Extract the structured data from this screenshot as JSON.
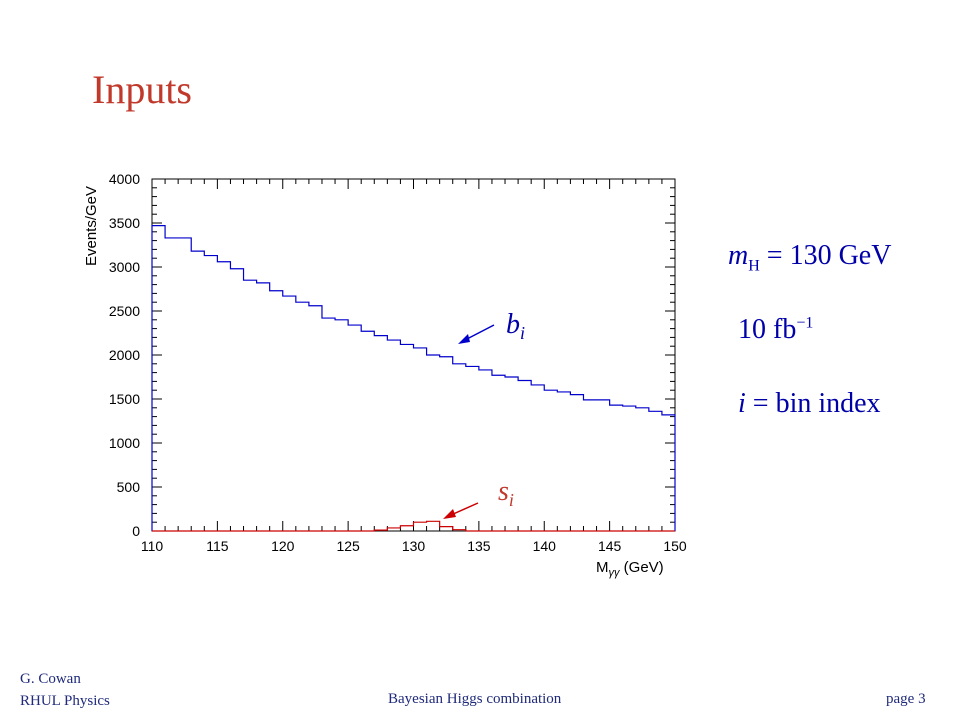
{
  "slide": {
    "title": "Inputs",
    "param_mass": {
      "sym": "m",
      "sub": "H",
      "rest": " = 130 GeV"
    },
    "lumi": {
      "main": "10 fb",
      "sup": "−1"
    },
    "bin_note": {
      "sym": "i",
      "rest": " = bin index"
    },
    "footer": {
      "author": "G. Cowan",
      "affil": "RHUL Physics",
      "talk": "Bayesian Higgs combination",
      "page": "page 3"
    },
    "colors": {
      "title": "#c0392b",
      "text": "#0000a8",
      "background_hist": "#0000cc",
      "signal_hist": "#cc0000"
    }
  },
  "chart_data": {
    "type": "histogram",
    "ylabel": "Events/GeV",
    "xlabel": {
      "main": "M",
      "sub": "γγ",
      "unit": " (GeV)"
    },
    "xlim": [
      110,
      150
    ],
    "ylim": [
      0,
      4000
    ],
    "x_ticks": [
      "110",
      "115",
      "120",
      "125",
      "130",
      "135",
      "140",
      "145",
      "150"
    ],
    "y_ticks": [
      "0",
      "500",
      "1000",
      "1500",
      "2000",
      "2500",
      "3000",
      "3500",
      "4000"
    ],
    "bin_edges": [
      110,
      111,
      112,
      113,
      114,
      115,
      116,
      117,
      118,
      119,
      120,
      121,
      122,
      123,
      124,
      125,
      126,
      127,
      128,
      129,
      130,
      131,
      132,
      133,
      134,
      135,
      136,
      137,
      138,
      139,
      140,
      141,
      142,
      143,
      144,
      145,
      146,
      147,
      148,
      149,
      150
    ],
    "series": [
      {
        "name": "b_i",
        "label": {
          "sym": "b",
          "sub": "i"
        },
        "values": [
          3470,
          3330,
          3330,
          3180,
          3130,
          3060,
          2980,
          2850,
          2820,
          2730,
          2670,
          2600,
          2560,
          2420,
          2400,
          2340,
          2270,
          2220,
          2170,
          2120,
          2080,
          2000,
          1980,
          1900,
          1870,
          1830,
          1770,
          1750,
          1710,
          1660,
          1600,
          1580,
          1550,
          1490,
          1490,
          1430,
          1420,
          1400,
          1360,
          1320
        ]
      },
      {
        "name": "s_i",
        "label": {
          "sym": "s",
          "sub": "i"
        },
        "values": [
          0,
          0,
          0,
          0,
          0,
          0,
          0,
          0,
          0,
          0,
          0,
          0,
          0,
          0,
          0,
          0,
          0,
          10,
          35,
          60,
          100,
          110,
          50,
          15,
          0,
          0,
          0,
          0,
          0,
          0,
          0,
          0,
          0,
          0,
          0,
          0,
          0,
          0,
          0,
          0
        ]
      }
    ]
  }
}
